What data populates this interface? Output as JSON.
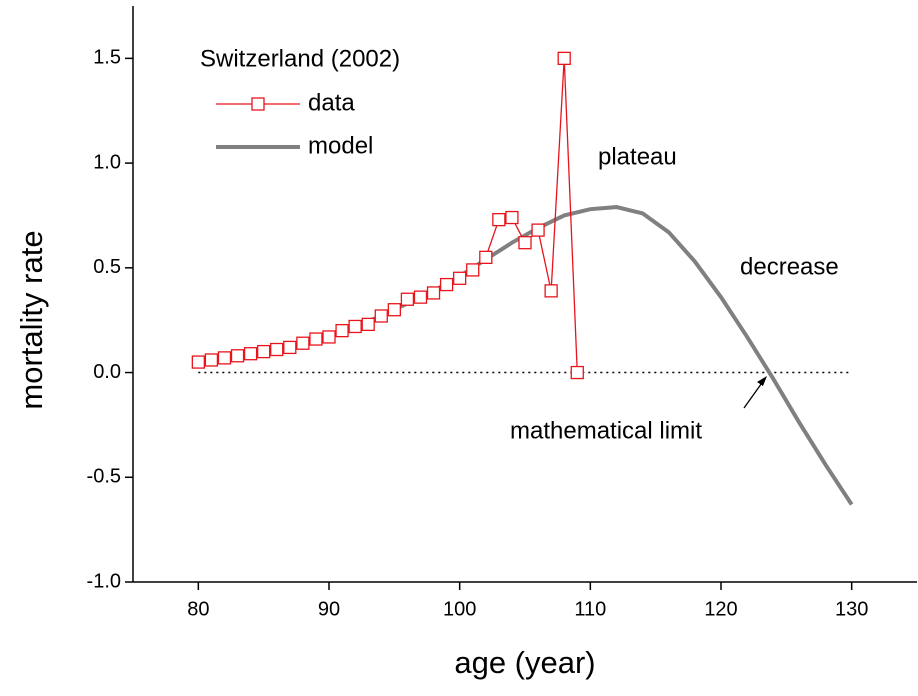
{
  "chart_data": {
    "type": "line",
    "xlabel": "age (year)",
    "ylabel": "mortality rate",
    "legend_title": "Switzerland (2002)",
    "xlim": [
      75,
      135
    ],
    "xticks": [
      80,
      90,
      100,
      110,
      120,
      130
    ],
    "ylim": [
      -1,
      1.75
    ],
    "yticks": [
      {
        "value": -1,
        "label": "-1.0"
      },
      {
        "value": -0.5,
        "label": "-0.5"
      },
      {
        "value": 0,
        "label": "0.0"
      },
      {
        "value": 0.5,
        "label": "0.5"
      },
      {
        "value": 1,
        "label": "1.0"
      },
      {
        "value": 1.5,
        "label": "1.5"
      }
    ],
    "series": [
      {
        "name": "data",
        "color": "#e8141c",
        "marker": "square",
        "x": [
          80,
          81,
          82,
          83,
          84,
          85,
          86,
          87,
          88,
          89,
          90,
          91,
          92,
          93,
          94,
          95,
          96,
          97,
          98,
          99,
          100,
          101,
          102,
          103,
          104,
          105,
          106,
          107,
          108,
          109
        ],
        "values": [
          0.05,
          0.06,
          0.07,
          0.08,
          0.09,
          0.1,
          0.11,
          0.12,
          0.14,
          0.16,
          0.17,
          0.2,
          0.22,
          0.23,
          0.27,
          0.3,
          0.35,
          0.36,
          0.38,
          0.42,
          0.45,
          0.49,
          0.55,
          0.73,
          0.74,
          0.62,
          0.68,
          0.39,
          1.5,
          0.0
        ]
      },
      {
        "name": "model",
        "color": "#808080",
        "x": [
          80,
          82,
          84,
          86,
          88,
          90,
          92,
          94,
          96,
          98,
          100,
          102,
          104,
          106,
          108,
          110,
          112,
          114,
          116,
          118,
          120,
          122,
          124,
          126,
          128,
          130
        ],
        "values": [
          0.05,
          0.065,
          0.085,
          0.11,
          0.14,
          0.175,
          0.22,
          0.27,
          0.33,
          0.39,
          0.46,
          0.54,
          0.62,
          0.69,
          0.75,
          0.78,
          0.79,
          0.76,
          0.67,
          0.53,
          0.36,
          0.17,
          -0.03,
          -0.24,
          -0.44,
          -0.63
        ]
      }
    ],
    "annotations": [
      {
        "text": "plateau"
      },
      {
        "text": "decrease"
      },
      {
        "text": "mathematical limit"
      }
    ]
  }
}
